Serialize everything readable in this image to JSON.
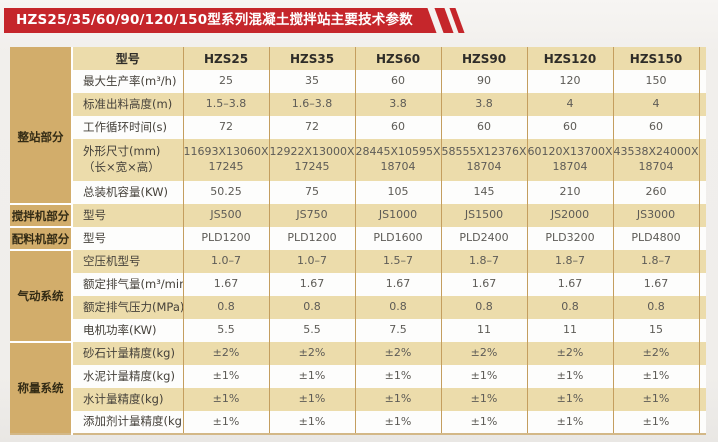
{
  "title": "HZS25/35/60/90/120/150型系列混凝土搅拌站主要技术参数",
  "colors": {
    "banner_red": "#c5262b",
    "group_cell": "#d2ad6b",
    "stripe_row": "#ecdcab",
    "white_row": "#fdfdfc",
    "col_border": "#c49e5f",
    "table_bottom": "#d3b887"
  },
  "table": {
    "header": {
      "param_label": "型号",
      "models": [
        "HZS25",
        "HZS35",
        "HZS60",
        "HZS90",
        "HZS120",
        "HZS150"
      ]
    },
    "groups": [
      {
        "name": "整站部分",
        "rows": [
          {
            "param": "最大生产率(m³/h)",
            "values": [
              "25",
              "35",
              "60",
              "90",
              "120",
              "150"
            ]
          },
          {
            "param": "标准出料高度(m)",
            "values": [
              "1.5–3.8",
              "1.6–3.8",
              "3.8",
              "3.8",
              "4",
              "4"
            ]
          },
          {
            "param": "工作循环时间(s)",
            "values": [
              "72",
              "72",
              "60",
              "60",
              "60",
              "60"
            ]
          },
          {
            "param": "外形尺寸(mm)\n（长×宽×高）",
            "tall": true,
            "values": [
              "11693X13060X\n17245",
              "12922X13000X\n17245",
              "28445X10595X\n18704",
              "58555X12376X\n18704",
              "60120X13700X\n18704",
              "43538X24000X\n18704"
            ]
          },
          {
            "param": "总装机容量(KW)",
            "values": [
              "50.25",
              "75",
              "105",
              "145",
              "210",
              "260"
            ]
          }
        ]
      },
      {
        "name": "搅拌机部分",
        "rows": [
          {
            "param": "型号",
            "values": [
              "JS500",
              "JS750",
              "JS1000",
              "JS1500",
              "JS2000",
              "JS3000"
            ]
          }
        ]
      },
      {
        "name": "配料机部分",
        "rows": [
          {
            "param": "型号",
            "values": [
              "PLD1200",
              "PLD1200",
              "PLD1600",
              "PLD2400",
              "PLD3200",
              "PLD4800"
            ]
          }
        ]
      },
      {
        "name": "气动系统",
        "rows": [
          {
            "param": "空压机型号",
            "values": [
              "1.0–7",
              "1.0–7",
              "1.5–7",
              "1.8–7",
              "1.8–7",
              "1.8–7"
            ]
          },
          {
            "param": "额定排气量(m³/min)",
            "values": [
              "1.67",
              "1.67",
              "1.67",
              "1.67",
              "1.67",
              "1.67"
            ]
          },
          {
            "param": "额定排气压力(MPa)",
            "values": [
              "0.8",
              "0.8",
              "0.8",
              "0.8",
              "0.8",
              "0.8"
            ]
          },
          {
            "param": "电机功率(KW)",
            "values": [
              "5.5",
              "5.5",
              "7.5",
              "11",
              "11",
              "15"
            ]
          }
        ]
      },
      {
        "name": "称量系统",
        "rows": [
          {
            "param": "砂石计量精度(kg)",
            "values": [
              "±2%",
              "±2%",
              "±2%",
              "±2%",
              "±2%",
              "±2%"
            ]
          },
          {
            "param": "水泥计量精度(kg)",
            "values": [
              "±1%",
              "±1%",
              "±1%",
              "±1%",
              "±1%",
              "±1%"
            ]
          },
          {
            "param": "水计量精度(kg)",
            "values": [
              "±1%",
              "±1%",
              "±1%",
              "±1%",
              "±1%",
              "±1%"
            ]
          },
          {
            "param": "添加剂计量精度(kg)",
            "values": [
              "±1%",
              "±1%",
              "±1%",
              "±1%",
              "±1%",
              "±1%"
            ]
          }
        ]
      }
    ]
  }
}
